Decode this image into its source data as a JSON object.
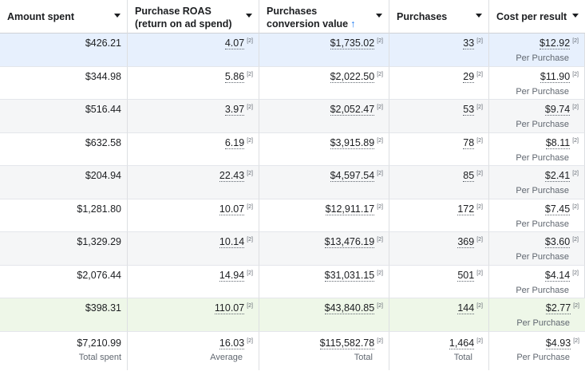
{
  "columns": [
    {
      "label": "Amount spent"
    },
    {
      "label": "Purchase ROAS (return on ad spend)"
    },
    {
      "label": "Purchases conversion value",
      "sort_icon": "↑"
    },
    {
      "label": "Purchases"
    },
    {
      "label": "Cost per result"
    }
  ],
  "footnote_marker": "[2]",
  "result_label": "Per Purchase",
  "row_colors": {
    "highlight": "#e7f0fd",
    "alt": "#f5f6f7",
    "plain": "#ffffff",
    "green": "#eef7e8"
  },
  "rows": [
    {
      "amount": "$426.21",
      "roas": "4.07",
      "value": "$1,735.02",
      "purchases": "33",
      "cost": "$12.92",
      "bg": "highlight"
    },
    {
      "amount": "$344.98",
      "roas": "5.86",
      "value": "$2,022.50",
      "purchases": "29",
      "cost": "$11.90",
      "bg": "plain"
    },
    {
      "amount": "$516.44",
      "roas": "3.97",
      "value": "$2,052.47",
      "purchases": "53",
      "cost": "$9.74",
      "bg": "alt"
    },
    {
      "amount": "$632.58",
      "roas": "6.19",
      "value": "$3,915.89",
      "purchases": "78",
      "cost": "$8.11",
      "bg": "plain"
    },
    {
      "amount": "$204.94",
      "roas": "22.43",
      "value": "$4,597.54",
      "purchases": "85",
      "cost": "$2.41",
      "bg": "alt"
    },
    {
      "amount": "$1,281.80",
      "roas": "10.07",
      "value": "$12,911.17",
      "purchases": "172",
      "cost": "$7.45",
      "bg": "plain"
    },
    {
      "amount": "$1,329.29",
      "roas": "10.14",
      "value": "$13,476.19",
      "purchases": "369",
      "cost": "$3.60",
      "bg": "alt"
    },
    {
      "amount": "$2,076.44",
      "roas": "14.94",
      "value": "$31,031.15",
      "purchases": "501",
      "cost": "$4.14",
      "bg": "plain"
    },
    {
      "amount": "$398.31",
      "roas": "110.07",
      "value": "$43,840.85",
      "purchases": "144",
      "cost": "$2.77",
      "bg": "green"
    }
  ],
  "totals": {
    "amount": "$7,210.99",
    "amount_label": "Total spent",
    "roas": "16.03",
    "roas_label": "Average",
    "value": "$115,582.78",
    "value_label": "Total",
    "purchases": "1,464",
    "purchases_label": "Total",
    "cost": "$4.93",
    "cost_label": "Per Purchase"
  }
}
